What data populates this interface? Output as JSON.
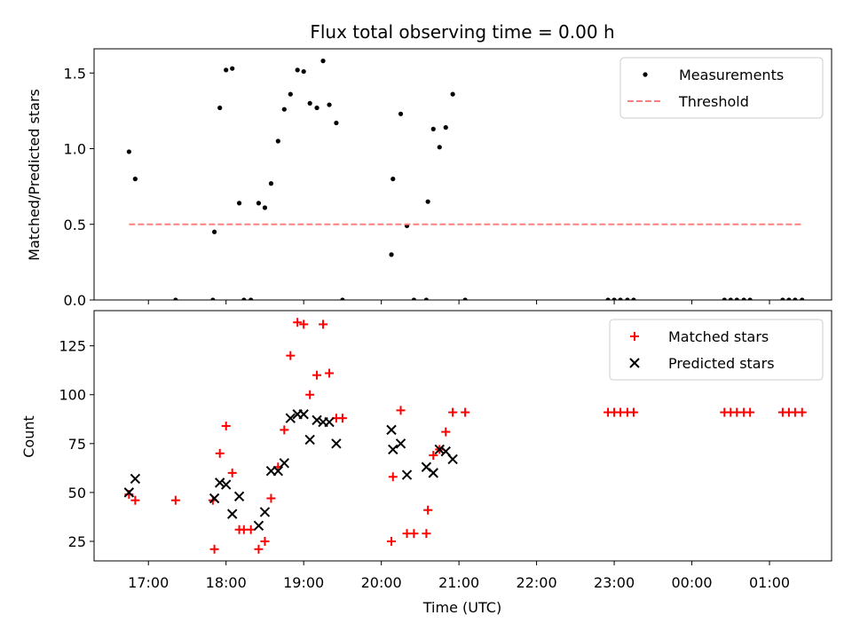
{
  "chart_data": [
    {
      "type": "scatter",
      "title": "Flux total observing time = 0.00 h",
      "xlabel": "",
      "ylabel": "Matched/Predicted stars",
      "x_unit": "hours (UTC, continuing past midnight)",
      "xlim": [
        16.3,
        25.8
      ],
      "ylim": [
        0,
        1.66
      ],
      "yticks": [
        "0.0",
        "0.5",
        "1.0",
        "1.5"
      ],
      "ytick_values": [
        0,
        0.5,
        1.0,
        1.5
      ],
      "legend_position": "top-right",
      "series": [
        {
          "name": "Measurements",
          "marker": "dot",
          "color": "#000000",
          "x": [
            16.75,
            16.83,
            17.35,
            17.83,
            17.85,
            17.92,
            18.0,
            18.08,
            18.17,
            18.23,
            18.32,
            18.42,
            18.5,
            18.58,
            18.67,
            18.75,
            18.83,
            18.92,
            19.0,
            19.08,
            19.17,
            19.25,
            19.33,
            19.42,
            19.5,
            20.13,
            20.15,
            20.25,
            20.33,
            20.42,
            20.58,
            20.6,
            20.67,
            20.75,
            20.83,
            20.92,
            21.08,
            22.92,
            23.0,
            23.08,
            23.17,
            23.25,
            24.42,
            24.5,
            24.58,
            24.67,
            24.75,
            25.17,
            25.25,
            25.33,
            25.42
          ],
          "y": [
            0.98,
            0.8,
            0.0,
            0.0,
            0.45,
            1.27,
            1.52,
            1.53,
            0.64,
            0.0,
            0.0,
            0.64,
            0.61,
            0.77,
            1.05,
            1.26,
            1.36,
            1.52,
            1.51,
            1.3,
            1.27,
            1.58,
            1.29,
            1.17,
            0.0,
            0.3,
            0.8,
            1.23,
            0.49,
            0.0,
            0.0,
            0.65,
            1.13,
            1.01,
            1.14,
            1.36,
            0.0,
            0.0,
            0.0,
            0.0,
            0.0,
            0.0,
            0.0,
            0.0,
            0.0,
            0.0,
            0.0,
            0.0,
            0.0,
            0.0,
            0.0
          ]
        },
        {
          "name": "Threshold",
          "marker": "dashed-line",
          "color": "#ff7f7f",
          "x": [
            16.75,
            25.42
          ],
          "y": [
            0.5,
            0.5
          ]
        }
      ]
    },
    {
      "type": "scatter",
      "title": "",
      "xlabel": "Time (UTC)",
      "ylabel": "Count",
      "xlim": [
        16.3,
        25.8
      ],
      "ylim": [
        15,
        143
      ],
      "yticks": [
        "25",
        "50",
        "75",
        "100",
        "125"
      ],
      "ytick_values": [
        25,
        50,
        75,
        100,
        125
      ],
      "xticks": [
        "17:00",
        "18:00",
        "19:00",
        "20:00",
        "21:00",
        "22:00",
        "23:00",
        "00:00",
        "01:00"
      ],
      "xtick_values": [
        17,
        18,
        19,
        20,
        21,
        22,
        23,
        24,
        25
      ],
      "legend_position": "top-right",
      "series": [
        {
          "name": "Matched stars",
          "marker": "plus",
          "color": "#ff0000",
          "x": [
            16.75,
            16.83,
            17.35,
            17.83,
            17.85,
            17.92,
            18.0,
            18.08,
            18.17,
            18.23,
            18.32,
            18.42,
            18.5,
            18.58,
            18.67,
            18.75,
            18.83,
            18.92,
            19.0,
            19.08,
            19.17,
            19.25,
            19.33,
            19.42,
            19.5,
            20.13,
            20.15,
            20.25,
            20.33,
            20.42,
            20.58,
            20.6,
            20.67,
            20.75,
            20.83,
            20.92,
            21.08,
            22.92,
            23.0,
            23.08,
            23.17,
            23.25,
            24.42,
            24.5,
            24.58,
            24.67,
            24.75,
            25.17,
            25.25,
            25.33,
            25.42
          ],
          "y": [
            49,
            46,
            46,
            46,
            21,
            70,
            84,
            60,
            31,
            31,
            31,
            21,
            25,
            47,
            63,
            82,
            120,
            137,
            136,
            100,
            110,
            136,
            111,
            88,
            88,
            25,
            58,
            92,
            29,
            29,
            29,
            41,
            69,
            72,
            81,
            91,
            91,
            91,
            91,
            91,
            91,
            91,
            91,
            91,
            91,
            91,
            91,
            91,
            91,
            91,
            91
          ]
        },
        {
          "name": "Predicted stars",
          "marker": "x",
          "color": "#000000",
          "x": [
            16.75,
            16.83,
            17.85,
            17.92,
            18.0,
            18.08,
            18.17,
            18.42,
            18.5,
            18.58,
            18.67,
            18.75,
            18.83,
            18.92,
            19.0,
            19.08,
            19.17,
            19.25,
            19.33,
            19.42,
            20.13,
            20.15,
            20.25,
            20.33,
            20.58,
            20.67,
            20.75,
            20.83,
            20.92
          ],
          "y": [
            50,
            57,
            47,
            55,
            54,
            39,
            48,
            33,
            40,
            61,
            61,
            65,
            88,
            90,
            90,
            77,
            87,
            86,
            86,
            75,
            82,
            72,
            75,
            59,
            63,
            60,
            72,
            71,
            67
          ]
        }
      ]
    }
  ]
}
